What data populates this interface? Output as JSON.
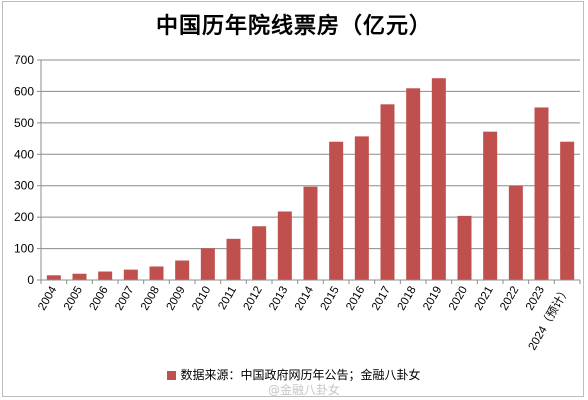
{
  "chart_data": {
    "type": "bar",
    "title": "中国历年院线票房（亿元）",
    "categories": [
      "2004",
      "2005",
      "2006",
      "2007",
      "2008",
      "2009",
      "2010",
      "2011",
      "2012",
      "2013",
      "2014",
      "2015",
      "2016",
      "2017",
      "2018",
      "2019",
      "2020",
      "2021",
      "2022",
      "2023",
      "2024（预计）"
    ],
    "series": [
      {
        "name": "数据来源：中国政府网历年公告；金融八卦女",
        "values": [
          15,
          20,
          27,
          33,
          43,
          62,
          101,
          131,
          171,
          218,
          297,
          440,
          457,
          559,
          610,
          642,
          204,
          472,
          300,
          549,
          440
        ],
        "color": "#c0504d"
      }
    ],
    "ylim": [
      0,
      700
    ],
    "yticks": [
      "0",
      "100",
      "200",
      "300",
      "400",
      "500",
      "600",
      "700"
    ],
    "grid": true,
    "legend_position": "bottom"
  },
  "watermark": "@金融八卦女"
}
